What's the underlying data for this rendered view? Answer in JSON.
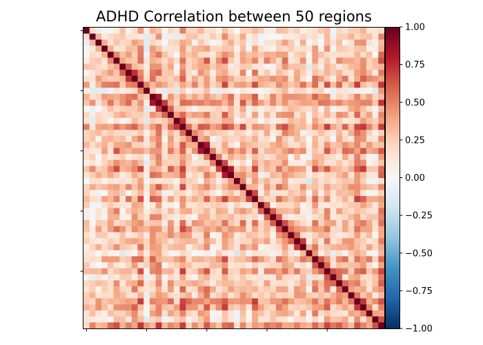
{
  "chart_data": {
    "type": "heatmap",
    "title": "ADHD Correlation between 50 regions",
    "xlabel": "",
    "ylabel": "",
    "n_regions": 50,
    "colormap": "RdBu_r",
    "vmin": -1.0,
    "vmax": 1.0,
    "colorbar": {
      "ticks": [
        1.0,
        0.75,
        0.5,
        0.25,
        0.0,
        -0.25,
        -0.5,
        -0.75,
        -1.0
      ],
      "tick_labels": [
        "1.00",
        "0.75",
        "0.50",
        "0.25",
        "0.00",
        "−0.25",
        "−0.50",
        "−0.75",
        "−1.00"
      ]
    },
    "x_tick_regions": [
      0,
      10,
      20,
      30,
      40
    ],
    "y_tick_regions": [
      0,
      10,
      20,
      30,
      40
    ],
    "diagonal_value": 1.0,
    "off_diagonal_pattern": {
      "typical_range": [
        -0.35,
        0.75
      ],
      "note_from_image": "mostly weak positive (light salmon), with a few near-zero/negative (light blue) rows/columns"
    },
    "colors": {
      "deep_red": "#67001f",
      "red": "#b2182b",
      "orange_red": "#d6604d",
      "salmon": "#f4a582",
      "light_salmon": "#fddbc7",
      "white": "#f7f7f7",
      "light_blue": "#d1e5f0",
      "sky_blue": "#92c5de",
      "blue": "#4393c3",
      "dark_blue": "#2166ac",
      "navy": "#053061"
    }
  }
}
